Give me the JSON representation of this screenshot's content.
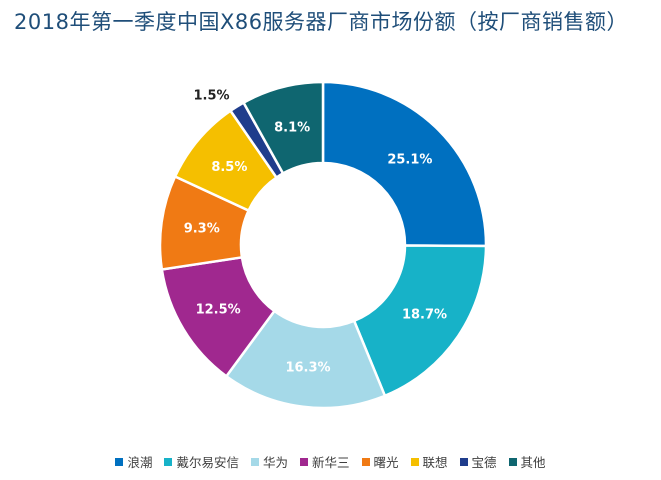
{
  "chart_data": {
    "type": "pie",
    "title": "2018年第一季度中国X86服务器厂商市场份额（按厂商销售额）",
    "legend_position": "bottom",
    "categories": [
      "浪潮",
      "戴尔易安信",
      "华为",
      "新华三",
      "曙光",
      "联想",
      "宝德",
      "其他"
    ],
    "values": [
      25.1,
      18.7,
      16.3,
      12.5,
      9.3,
      8.5,
      1.5,
      8.1
    ],
    "value_labels": [
      "25.1%",
      "18.7%",
      "16.3%",
      "12.5%",
      "9.3%",
      "8.5%",
      "1.5%",
      "8.1%"
    ],
    "colors": [
      "#0070c0",
      "#17b2c8",
      "#a5d9e8",
      "#a0288f",
      "#f07a14",
      "#f5bf00",
      "#1f3d8c",
      "#0f6670"
    ]
  }
}
